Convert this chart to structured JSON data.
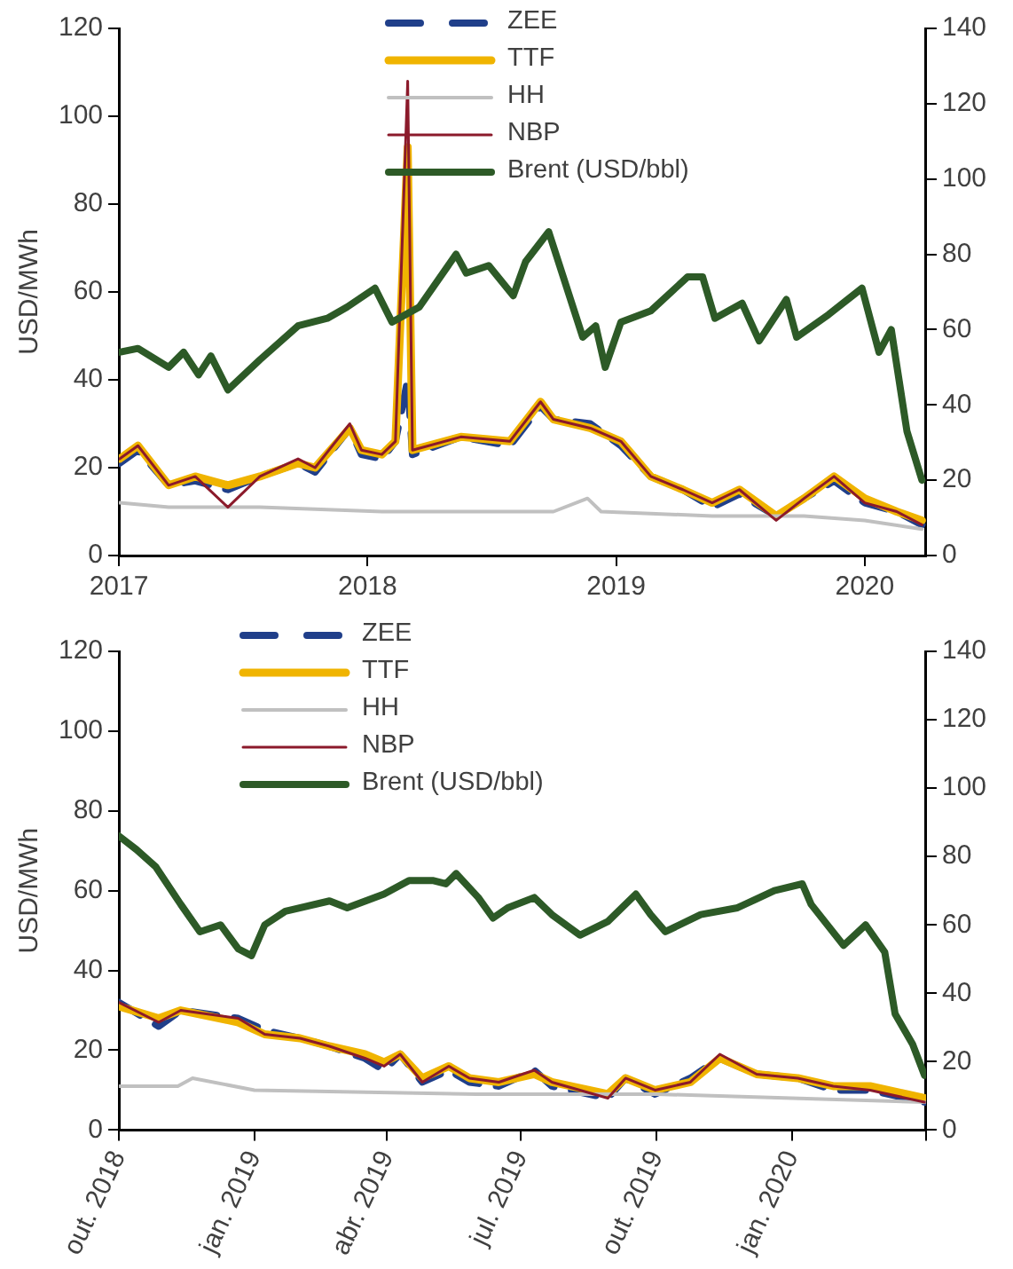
{
  "chart_data": [
    {
      "type": "line",
      "ylabel": "USD/MWh",
      "xlim": [
        "2017-01-01",
        "2020-03-31"
      ],
      "xticks": [
        "2017",
        "2018",
        "2019",
        "2020"
      ],
      "ylim": [
        0,
        120
      ],
      "yticks": [
        0,
        20,
        40,
        60,
        80,
        100,
        120
      ],
      "y2lim": [
        0,
        140
      ],
      "y2ticks": [
        0,
        20,
        40,
        60,
        80,
        100,
        120,
        140
      ],
      "legend": "top",
      "grid": false,
      "series": [
        {
          "name": "ZEE",
          "color": "#203f8a",
          "line_style": "dashed",
          "x": [
            "2017-01-02",
            "2017-01-29",
            "2017-03-15",
            "2017-04-23",
            "2017-06-10",
            "2017-07-27",
            "2017-09-21",
            "2017-10-16",
            "2017-12-06",
            "2017-12-23",
            "2018-01-22",
            "2018-02-11",
            "2018-03-01",
            "2018-03-08",
            "2018-05-18",
            "2018-07-29",
            "2018-09-12",
            "2018-10-01",
            "2018-11-24",
            "2019-01-08",
            "2019-02-21",
            "2019-04-09",
            "2019-05-22",
            "2019-07-01",
            "2019-08-24",
            "2019-10-04",
            "2019-11-17",
            "2020-01-01",
            "2020-02-17",
            "2020-03-25"
          ],
          "values": [
            21,
            24,
            16,
            17,
            15,
            18,
            21,
            19,
            29,
            23,
            22,
            26,
            40,
            23,
            27,
            25,
            34,
            31,
            30,
            25,
            18,
            15,
            11,
            14,
            9,
            13,
            17,
            12,
            10,
            7
          ]
        },
        {
          "name": "TTF",
          "color": "#f0b400",
          "x": [
            "2017-01-02",
            "2017-01-29",
            "2017-03-15",
            "2017-04-23",
            "2017-06-10",
            "2017-07-27",
            "2017-09-21",
            "2017-10-16",
            "2017-12-06",
            "2017-12-23",
            "2018-01-22",
            "2018-02-11",
            "2018-03-01",
            "2018-03-08",
            "2018-05-18",
            "2018-07-29",
            "2018-09-12",
            "2018-10-01",
            "2018-11-24",
            "2019-01-08",
            "2019-02-21",
            "2019-04-09",
            "2019-05-22",
            "2019-07-01",
            "2019-08-24",
            "2019-10-04",
            "2019-11-17",
            "2020-01-01",
            "2020-02-17",
            "2020-03-25"
          ],
          "values": [
            22,
            25,
            16,
            18,
            16,
            18,
            21,
            20,
            29,
            24,
            23,
            26,
            93,
            24,
            27,
            26,
            35,
            31,
            29,
            26,
            18,
            15,
            12,
            15,
            9,
            13,
            18,
            13,
            10,
            8
          ]
        },
        {
          "name": "HH",
          "color": "#c0c0c0",
          "x": [
            "2017-01-02",
            "2017-03-15",
            "2017-07-27",
            "2018-01-22",
            "2018-06-01",
            "2018-10-01",
            "2018-11-20",
            "2018-12-10",
            "2019-05-22",
            "2019-10-04",
            "2020-01-01",
            "2020-03-25"
          ],
          "values": [
            12,
            11,
            11,
            10,
            10,
            10,
            13,
            10,
            9,
            9,
            8,
            6
          ]
        },
        {
          "name": "NBP",
          "color": "#8b1a2b",
          "x": [
            "2017-01-02",
            "2017-01-29",
            "2017-03-15",
            "2017-04-23",
            "2017-06-10",
            "2017-07-27",
            "2017-09-21",
            "2017-10-16",
            "2017-12-06",
            "2017-12-23",
            "2018-01-22",
            "2018-02-11",
            "2018-03-01",
            "2018-03-08",
            "2018-05-18",
            "2018-07-29",
            "2018-09-12",
            "2018-10-01",
            "2018-11-24",
            "2019-01-08",
            "2019-02-21",
            "2019-04-09",
            "2019-05-22",
            "2019-07-01",
            "2019-08-24",
            "2019-10-04",
            "2019-11-17",
            "2020-01-01",
            "2020-02-17",
            "2020-03-25"
          ],
          "values": [
            22,
            25,
            16,
            18,
            11,
            18,
            22,
            20,
            30,
            24,
            23,
            26,
            108,
            24,
            27,
            26,
            35,
            31,
            29,
            26,
            18,
            15,
            12,
            15,
            8,
            13,
            18,
            12,
            10,
            7
          ]
        },
        {
          "name": "Brent (USD/bbl)",
          "color": "#2d5a27",
          "axis": "y2",
          "x": [
            "2017-01-02",
            "2017-01-29",
            "2017-03-15",
            "2017-04-06",
            "2017-04-28",
            "2017-05-16",
            "2017-06-10",
            "2017-07-27",
            "2017-09-21",
            "2017-11-03",
            "2017-12-02",
            "2018-01-12",
            "2018-02-06",
            "2018-03-18",
            "2018-05-11",
            "2018-05-26",
            "2018-06-28",
            "2018-08-03",
            "2018-08-21",
            "2018-09-24",
            "2018-11-13",
            "2018-12-02",
            "2018-12-16",
            "2019-01-08",
            "2019-02-21",
            "2019-04-16",
            "2019-05-08",
            "2019-05-26",
            "2019-07-05",
            "2019-07-30",
            "2019-09-08",
            "2019-09-23",
            "2019-11-09",
            "2019-12-28",
            "2020-01-22",
            "2020-02-09",
            "2020-03-03",
            "2020-03-25"
          ],
          "values": [
            54,
            55,
            50,
            54,
            48,
            53,
            44,
            52,
            61,
            63,
            66,
            71,
            62,
            66,
            80,
            75,
            77,
            69,
            78,
            86,
            58,
            61,
            50,
            62,
            65,
            74,
            74,
            63,
            67,
            57,
            68,
            58,
            64,
            71,
            54,
            60,
            33,
            20
          ]
        }
      ]
    },
    {
      "type": "line",
      "ylabel": "USD/MWh",
      "xlim": [
        "2018-10-01",
        "2020-04-01"
      ],
      "xticks": [
        {
          "value": "2018-10-01",
          "label": "out. 2018"
        },
        {
          "value": "2019-01-01",
          "label": "jan. 2019"
        },
        {
          "value": "2019-04-01",
          "label": "abr. 2019"
        },
        {
          "value": "2019-07-01",
          "label": "jul. 2019"
        },
        {
          "value": "2019-10-01",
          "label": "out. 2019"
        },
        {
          "value": "2020-01-01",
          "label": "jan. 2020"
        },
        {
          "value": "2020-04-01",
          "label": null
        }
      ],
      "ylim": [
        0,
        120
      ],
      "yticks": [
        0,
        20,
        40,
        60,
        80,
        100,
        120
      ],
      "y2lim": [
        0,
        140
      ],
      "y2ticks": [
        0,
        20,
        40,
        60,
        80,
        100,
        120,
        140
      ],
      "legend": "top",
      "grid": false,
      "series": [
        {
          "name": "ZEE",
          "color": "#203f8a",
          "line_style": "dashed",
          "x": [
            "2018-10-01",
            "2018-10-28",
            "2018-11-12",
            "2018-12-21",
            "2019-01-08",
            "2019-02-01",
            "2019-02-21",
            "2019-03-17",
            "2019-03-30",
            "2019-04-10",
            "2019-04-25",
            "2019-05-13",
            "2019-05-27",
            "2019-06-16",
            "2019-07-10",
            "2019-07-22",
            "2019-08-29",
            "2019-09-10",
            "2019-09-30",
            "2019-10-24",
            "2019-11-13",
            "2019-12-08",
            "2020-01-05",
            "2020-01-29",
            "2020-02-23",
            "2020-03-31"
          ],
          "values": [
            32,
            26,
            30,
            28,
            25,
            23,
            21,
            18,
            15,
            19,
            12,
            15,
            12,
            11,
            15,
            11,
            8,
            13,
            9,
            13,
            18,
            14,
            13,
            10,
            10,
            7
          ]
        },
        {
          "name": "TTF",
          "color": "#f0b400",
          "x": [
            "2018-10-01",
            "2018-10-28",
            "2018-11-12",
            "2018-12-21",
            "2019-01-08",
            "2019-02-01",
            "2019-02-21",
            "2019-03-17",
            "2019-03-30",
            "2019-04-10",
            "2019-04-25",
            "2019-05-13",
            "2019-05-27",
            "2019-06-16",
            "2019-07-10",
            "2019-07-22",
            "2019-08-29",
            "2019-09-10",
            "2019-09-30",
            "2019-10-24",
            "2019-11-13",
            "2019-12-08",
            "2020-01-05",
            "2020-01-29",
            "2020-02-23",
            "2020-03-31"
          ],
          "values": [
            31,
            28,
            30,
            27,
            24,
            23,
            21,
            19,
            17,
            19,
            13,
            16,
            13,
            12,
            14,
            12,
            9,
            13,
            10,
            12,
            18,
            14,
            13,
            11,
            11,
            8
          ]
        },
        {
          "name": "HH",
          "color": "#c0c0c0",
          "x": [
            "2018-10-01",
            "2018-11-10",
            "2018-11-20",
            "2019-01-01",
            "2019-06-01",
            "2019-10-01",
            "2020-01-01",
            "2020-03-31"
          ],
          "values": [
            11,
            11,
            13,
            10,
            9,
            9,
            8,
            7
          ]
        },
        {
          "name": "NBP",
          "color": "#8b1a2b",
          "x": [
            "2018-10-01",
            "2018-10-28",
            "2018-11-12",
            "2018-12-21",
            "2019-01-08",
            "2019-02-01",
            "2019-02-21",
            "2019-03-17",
            "2019-03-30",
            "2019-04-10",
            "2019-04-25",
            "2019-05-13",
            "2019-05-27",
            "2019-06-16",
            "2019-07-10",
            "2019-07-22",
            "2019-08-29",
            "2019-09-10",
            "2019-09-30",
            "2019-10-24",
            "2019-11-13",
            "2019-12-08",
            "2020-01-05",
            "2020-01-29",
            "2020-02-23",
            "2020-03-31"
          ],
          "values": [
            32,
            27,
            30,
            28,
            24,
            23,
            21,
            18,
            16,
            19,
            12,
            16,
            13,
            12,
            15,
            12,
            8,
            13,
            10,
            12,
            19,
            14,
            13,
            11,
            10,
            7
          ]
        },
        {
          "name": "Brent (USD/bbl)",
          "color": "#2d5a27",
          "axis": "y2",
          "x": [
            "2018-10-01",
            "2018-10-13",
            "2018-10-26",
            "2018-11-12",
            "2018-11-25",
            "2018-12-09",
            "2018-12-21",
            "2018-12-30",
            "2019-01-08",
            "2019-01-22",
            "2019-02-21",
            "2019-03-05",
            "2019-03-30",
            "2019-04-16",
            "2019-05-02",
            "2019-05-11",
            "2019-05-18",
            "2019-06-02",
            "2019-06-12",
            "2019-06-22",
            "2019-07-10",
            "2019-07-22",
            "2019-08-10",
            "2019-08-29",
            "2019-09-17",
            "2019-09-27",
            "2019-10-07",
            "2019-10-31",
            "2019-11-25",
            "2019-12-20",
            "2020-01-08",
            "2020-01-14",
            "2020-02-05",
            "2020-02-20",
            "2020-03-04",
            "2020-03-11",
            "2020-03-23",
            "2020-03-31"
          ],
          "values": [
            86,
            82,
            77,
            66,
            58,
            60,
            53,
            51,
            60,
            64,
            67,
            65,
            69,
            73,
            73,
            72,
            75,
            68,
            62,
            65,
            68,
            63,
            57,
            61,
            69,
            63,
            58,
            63,
            65,
            70,
            72,
            66,
            54,
            60,
            52,
            34,
            25,
            16
          ]
        }
      ]
    }
  ]
}
